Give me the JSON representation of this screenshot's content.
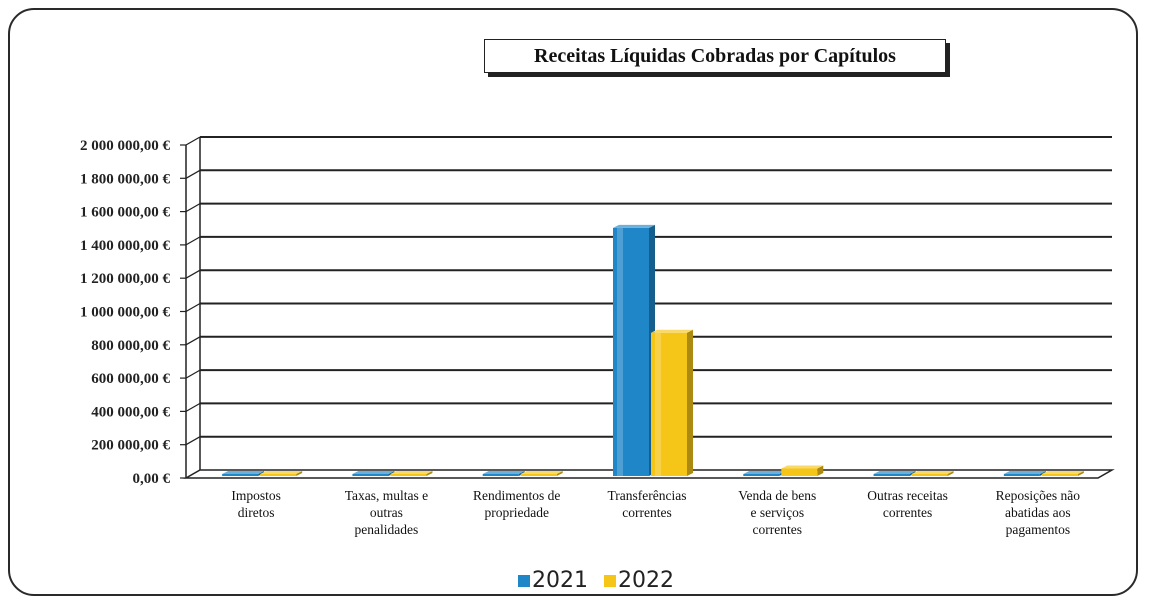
{
  "chart_data": {
    "type": "bar",
    "title": "Receitas Líquidas Cobradas por Capítulos",
    "categories": [
      [
        "Impostos",
        "diretos"
      ],
      [
        "Taxas, multas e",
        "outras",
        "penalidades"
      ],
      [
        "Rendimentos de",
        "propriedade"
      ],
      [
        "Transferências",
        "correntes"
      ],
      [
        "Venda de bens",
        "e serviços",
        "correntes"
      ],
      [
        "Outras receitas",
        "correntes"
      ],
      [
        "Reposições não",
        "abatidas aos",
        "pagamentos"
      ]
    ],
    "series": [
      {
        "name": "2021",
        "color": "#1f86c8",
        "values": [
          5000,
          8000,
          6000,
          1490000,
          9000,
          6000,
          8000
        ]
      },
      {
        "name": "2022",
        "color": "#f5c518",
        "values": [
          4000,
          9000,
          5000,
          860000,
          45000,
          7000,
          5000
        ]
      }
    ],
    "ylim": [
      0,
      2000000
    ],
    "yticks": [
      "0,00 €",
      "200 000,00 €",
      "400 000,00 €",
      "600 000,00 €",
      "800 000,00 €",
      "1 000 000,00 €",
      "1 200 000,00 €",
      "1 400 000,00 €",
      "1 600 000,00 €",
      "1 800 000,00 €",
      "2 000 000,00 €"
    ],
    "grid": true,
    "legend": "bottom"
  }
}
